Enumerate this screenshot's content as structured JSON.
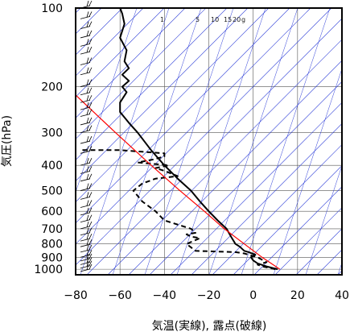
{
  "chart_data": {
    "type": "line",
    "title": "",
    "xlabel": "気温(実線), 露点(破線)",
    "ylabel": "気圧(hPa)",
    "x_axis": {
      "min": -80,
      "max": 40,
      "ticks": [
        -80,
        -60,
        -40,
        -20,
        0,
        20,
        40
      ],
      "tick_labels": [
        "−80",
        "−60",
        "−40",
        "−20",
        "0",
        "20",
        "40"
      ]
    },
    "y_axis": {
      "scale": "log",
      "min": 100,
      "max": 1050,
      "ticks": [
        100,
        200,
        300,
        400,
        500,
        600,
        700,
        800,
        900,
        1000
      ],
      "tick_labels": [
        "100",
        "200",
        "300",
        "400",
        "500",
        "600",
        "700",
        "800",
        "900",
        "1000"
      ]
    },
    "grid": true,
    "mixing_ratio_labels": [
      "1",
      "5",
      "10",
      "15",
      "20",
      "g"
    ],
    "series": [
      {
        "role": "temperature",
        "style": "solid",
        "color": "#000000",
        "points": [
          [
            11,
            1000
          ],
          [
            6,
            975
          ],
          [
            2,
            950
          ],
          [
            0,
            925
          ],
          [
            -1,
            900
          ],
          [
            1,
            880
          ],
          [
            -2,
            860
          ],
          [
            -4,
            850
          ],
          [
            -6,
            820
          ],
          [
            -8,
            800
          ],
          [
            -10,
            750
          ],
          [
            -12,
            700
          ],
          [
            -16,
            650
          ],
          [
            -20,
            600
          ],
          [
            -24,
            550
          ],
          [
            -28,
            500
          ],
          [
            -34,
            450
          ],
          [
            -40,
            400
          ],
          [
            -46,
            350
          ],
          [
            -52,
            300
          ],
          [
            -56,
            275
          ],
          [
            -60,
            250
          ],
          [
            -60,
            230
          ],
          [
            -57,
            210
          ],
          [
            -59,
            200
          ],
          [
            -56,
            190
          ],
          [
            -59,
            180
          ],
          [
            -56,
            170
          ],
          [
            -58,
            160
          ],
          [
            -57,
            145
          ],
          [
            -60,
            130
          ],
          [
            -58,
            115
          ],
          [
            -59,
            105
          ],
          [
            -60,
            100
          ]
        ]
      },
      {
        "role": "dew_point",
        "style": "dashed",
        "color": "#000000",
        "points": [
          [
            10,
            1000
          ],
          [
            4,
            975
          ],
          [
            2,
            960
          ],
          [
            6,
            940
          ],
          [
            2,
            900
          ],
          [
            -4,
            870
          ],
          [
            -8,
            860
          ],
          [
            -26,
            850
          ],
          [
            -30,
            800
          ],
          [
            -24,
            760
          ],
          [
            -28,
            750
          ],
          [
            -30,
            735
          ],
          [
            -26,
            725
          ],
          [
            -28,
            700
          ],
          [
            -40,
            650
          ],
          [
            -44,
            600
          ],
          [
            -50,
            550
          ],
          [
            -54,
            500
          ],
          [
            -50,
            470
          ],
          [
            -44,
            450
          ],
          [
            -34,
            440
          ],
          [
            -40,
            420
          ],
          [
            -44,
            410
          ],
          [
            -38,
            400
          ],
          [
            -52,
            390
          ],
          [
            -45,
            380
          ],
          [
            -40,
            370
          ],
          [
            -40,
            360
          ],
          [
            -60,
            350
          ],
          [
            -78,
            350
          ]
        ]
      },
      {
        "role": "reference_curve",
        "style": "solid",
        "color": "#ff0000",
        "points": [
          [
            12,
            1000
          ],
          [
            4,
            900
          ],
          [
            -4,
            800
          ],
          [
            -13,
            700
          ],
          [
            -22,
            600
          ],
          [
            -33,
            500
          ],
          [
            -46,
            400
          ],
          [
            -62,
            300
          ],
          [
            -84,
            200
          ]
        ]
      }
    ]
  }
}
